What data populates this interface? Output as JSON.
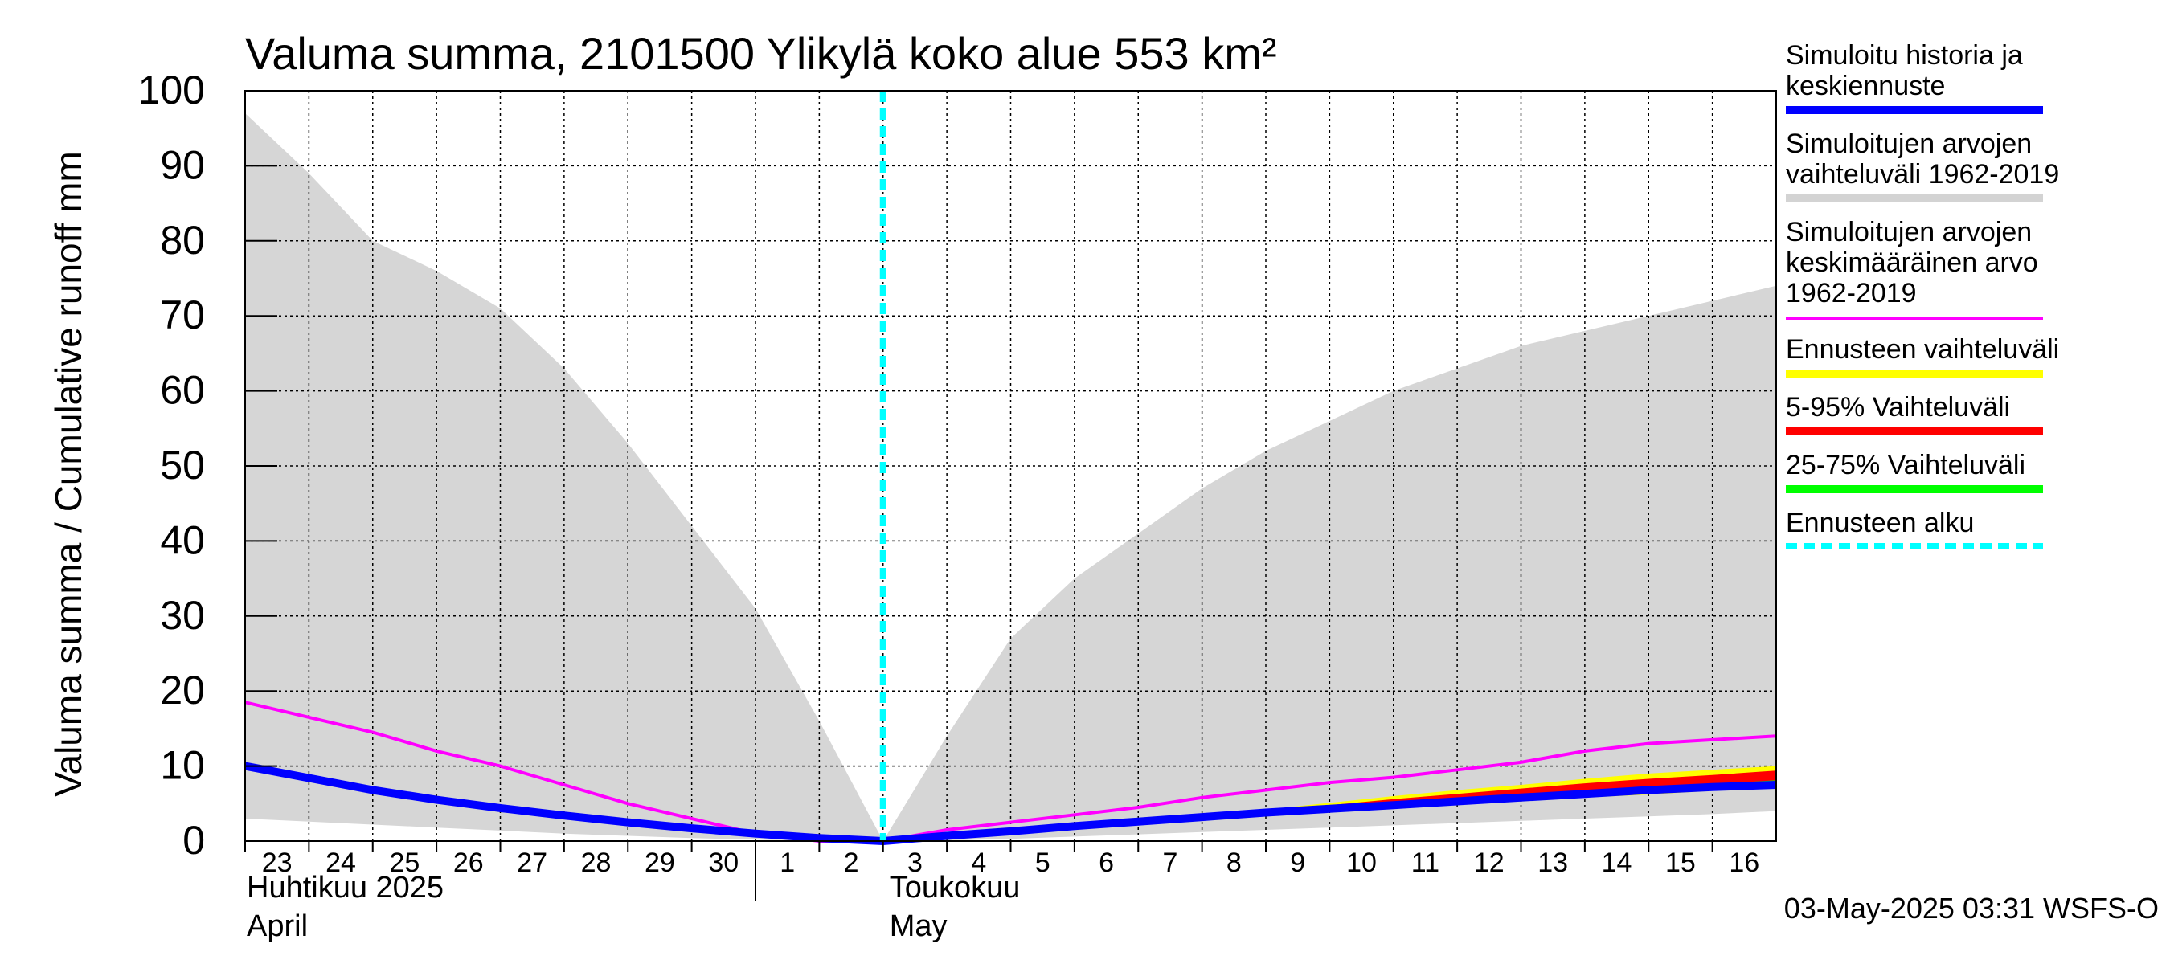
{
  "title": "Valuma summa, 2101500 Ylikylä koko alue 553 km²",
  "footer": "03-May-2025 03:31 WSFS-O",
  "legend": [
    {
      "label": "Simuloitu historia ja\nkeskiennuste",
      "color": "#0000ff",
      "style": "solid"
    },
    {
      "label": "Simuloitujen arvojen\nvaihteluväli 1962-2019",
      "color": "#d3d3d3",
      "style": "solid"
    },
    {
      "label": "Simuloitujen arvojen\nkeskimääräinen arvo\n   1962-2019",
      "color": "#ff00ff",
      "style": "solid-thin"
    },
    {
      "label": "Ennusteen vaihteluväli",
      "color": "#ffff00",
      "style": "solid"
    },
    {
      "label": "5-95% Vaihteluväli",
      "color": "#ff0000",
      "style": "solid"
    },
    {
      "label": "25-75% Vaihteluväli",
      "color": "#00ff00",
      "style": "solid"
    },
    {
      "label": "Ennusteen alku",
      "color": "#00ffff",
      "style": "dashed"
    }
  ],
  "chart_data": {
    "type": "line",
    "ylabel": "Valuma summa / Cumulative runoff     mm",
    "ylim": [
      0,
      100
    ],
    "yticks": [
      0,
      10,
      20,
      30,
      40,
      50,
      60,
      70,
      80,
      90,
      100
    ],
    "x_day_labels": [
      "23",
      "24",
      "25",
      "26",
      "27",
      "28",
      "29",
      "30",
      "1",
      "2",
      "3",
      "4",
      "5",
      "6",
      "7",
      "8",
      "9",
      "10",
      "11",
      "12",
      "13",
      "14",
      "15",
      "16"
    ],
    "month_labels": [
      {
        "fi": "Huhtikuu  2025",
        "en": "April",
        "start_index": 0
      },
      {
        "fi": "Toukokuu",
        "en": "May",
        "start_index": 10
      }
    ],
    "grid": true,
    "forecast_start_index": 10,
    "historical_range": {
      "upper": [
        97,
        89,
        80,
        76,
        71,
        63,
        53,
        42,
        31,
        16,
        0,
        14,
        27,
        35,
        41,
        47,
        52,
        56,
        60,
        63,
        66,
        68,
        70,
        72,
        74
      ],
      "lower": [
        3,
        2.6,
        2.2,
        1.8,
        1.4,
        1.0,
        0.7,
        0.4,
        0.2,
        0.05,
        0,
        0.1,
        0.3,
        0.6,
        0.9,
        1.2,
        1.5,
        1.8,
        2.1,
        2.4,
        2.7,
        3.0,
        3.3,
        3.6,
        4
      ]
    },
    "historical_mean": [
      18.5,
      16.5,
      14.5,
      12,
      10,
      7.5,
      5,
      3,
      1,
      0,
      0,
      1.5,
      2.5,
      3.5,
      4.5,
      5.8,
      6.8,
      7.8,
      8.5,
      9.5,
      10.5,
      12,
      13,
      13.5,
      14
    ],
    "forecast_range": {
      "upper": [
        0,
        0.6,
        1.2,
        1.8,
        2.5,
        3.3,
        4.2,
        5.1,
        6.0,
        6.8,
        7.5,
        8.3,
        9.0,
        9.5,
        10
      ],
      "lower": [
        0,
        0.5,
        1.0,
        1.6,
        2.2,
        2.9,
        3.4,
        3.9,
        4.4,
        4.9,
        5.3,
        5.8,
        6.2,
        6.7,
        7
      ]
    },
    "forecast_5_95": {
      "upper": [
        0,
        0.6,
        1.1,
        1.7,
        2.4,
        3.2,
        4.0,
        4.8,
        5.6,
        6.3,
        7.0,
        7.7,
        8.3,
        8.8,
        9.4
      ],
      "lower": [
        0,
        0.5,
        1.0,
        1.6,
        2.2,
        2.9,
        3.5,
        4.0,
        4.5,
        5.0,
        5.5,
        6.0,
        6.5,
        7.0,
        7.5
      ]
    },
    "forecast_25_75": {
      "upper": [
        0,
        0.55,
        1.05,
        1.65,
        2.3,
        3.0,
        3.7,
        4.3,
        4.9,
        5.5,
        6.0,
        6.6,
        7.1,
        7.6,
        8.1
      ],
      "lower": [
        0,
        0.5,
        1.0,
        1.6,
        2.2,
        2.9,
        3.5,
        4.0,
        4.5,
        5.0,
        5.5,
        6.0,
        6.5,
        7.0,
        7.5
      ]
    },
    "simulated_median": [
      10,
      8.4,
      6.8,
      5.5,
      4.4,
      3.4,
      2.5,
      1.7,
      1.0,
      0.4,
      0,
      0.7,
      1.3,
      2.0,
      2.6,
      3.2,
      3.8,
      4.3,
      4.8,
      5.3,
      5.8,
      6.3,
      6.8,
      7.2,
      7.5
    ]
  }
}
